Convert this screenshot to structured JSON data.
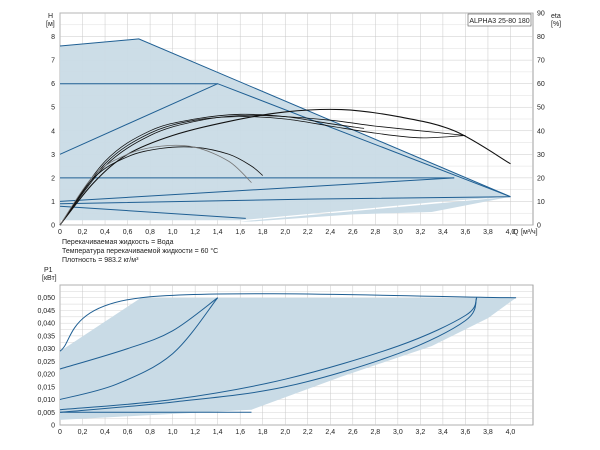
{
  "chart_data": [
    {
      "type": "line",
      "model_label": "ALPHA3 25-80 180",
      "ylabel": "H",
      "ylabel_unit": "[м]",
      "y2label": "eta",
      "y2label_unit": "[%]",
      "xlabel": "Q",
      "xlabel_unit": "[м³/ч]",
      "xlim": [
        0,
        4.2
      ],
      "ylim": [
        0,
        9
      ],
      "y2lim": [
        0,
        90
      ],
      "x_ticks": [
        "0",
        "0,2",
        "0,4",
        "0,6",
        "0,8",
        "1,0",
        "1,2",
        "1,4",
        "1,6",
        "1,8",
        "2,0",
        "2,2",
        "2,4",
        "2,6",
        "2,8",
        "3,0",
        "3,2",
        "3,4",
        "3,6",
        "3,8",
        "4,0"
      ],
      "y_ticks": [
        "0",
        "1",
        "2",
        "3",
        "4",
        "5",
        "6",
        "7",
        "8"
      ],
      "y2_ticks": [
        "0",
        "10",
        "20",
        "30",
        "40",
        "50",
        "60",
        "70",
        "80",
        "90"
      ],
      "info_lines": [
        "Перекачиваемая жидкость = Вода",
        "Температура перекачиваемой жидкости = 60 °C",
        "Плотность = 983.2 кг/м³"
      ],
      "operating_area": [
        [
          0,
          7.6
        ],
        [
          0.7,
          7.9
        ],
        [
          4.0,
          1.2
        ],
        [
          3.4,
          1.0
        ],
        [
          1.6,
          0.2
        ],
        [
          0,
          0.2
        ]
      ],
      "operating_area_extension": [
        [
          1.6,
          0.15
        ],
        [
          4.0,
          1.2
        ],
        [
          3.3,
          0.55
        ],
        [
          2.6,
          0.45
        ],
        [
          1.7,
          0.15
        ]
      ],
      "head_series": [
        {
          "points": [
            [
              0,
              7.6
            ],
            [
              0.7,
              7.9
            ],
            [
              4.0,
              1.2
            ]
          ]
        },
        {
          "points": [
            [
              0,
              6.0
            ],
            [
              1.4,
              6.0
            ],
            [
              4.0,
              1.2
            ]
          ]
        },
        {
          "points": [
            [
              0,
              3.0
            ],
            [
              1.4,
              6.0
            ]
          ]
        },
        {
          "points": [
            [
              0,
              2.0
            ],
            [
              3.5,
              2.0
            ]
          ]
        },
        {
          "points": [
            [
              0,
              1.0
            ],
            [
              3.5,
              2.0
            ]
          ]
        },
        {
          "points": [
            [
              0,
              0.8
            ],
            [
              1.65,
              0.28
            ]
          ]
        },
        {
          "points": [
            [
              0,
              0.9
            ],
            [
              2.2,
              1.1
            ],
            [
              4.0,
              1.2
            ]
          ]
        }
      ],
      "efficiency_series": [
        {
          "points": [
            [
              0,
              0
            ],
            [
              0.3,
              18
            ],
            [
              0.6,
              30
            ],
            [
              1.0,
              38
            ],
            [
              1.5,
              44
            ],
            [
              2.0,
              48
            ],
            [
              2.5,
              49
            ],
            [
              3.0,
              46
            ],
            [
              3.5,
              40
            ],
            [
              4.0,
              26
            ]
          ]
        },
        {
          "points": [
            [
              0,
              0
            ],
            [
              0.4,
              25
            ],
            [
              0.8,
              38
            ],
            [
              1.2,
              44
            ],
            [
              1.6,
              46.5
            ],
            [
              2.0,
              46
            ],
            [
              2.4,
              44.5
            ],
            [
              2.8,
              42
            ],
            [
              3.2,
              40
            ],
            [
              3.6,
              38
            ]
          ]
        },
        {
          "points": [
            [
              0,
              0
            ],
            [
              0.4,
              26
            ],
            [
              0.8,
              39
            ],
            [
              1.2,
              44.5
            ],
            [
              1.6,
              46
            ],
            [
              2.0,
              45
            ],
            [
              2.4,
              42
            ],
            [
              2.8,
              39
            ],
            [
              3.2,
              37
            ],
            [
              3.6,
              38
            ]
          ]
        },
        {
          "points": [
            [
              0,
              0
            ],
            [
              0.4,
              27
            ],
            [
              0.8,
              40
            ],
            [
              1.2,
              45
            ],
            [
              1.6,
              47
            ],
            [
              2.0,
              46
            ],
            [
              2.4,
              43
            ],
            [
              2.7,
              41
            ]
          ]
        },
        {
          "points": [
            [
              0,
              0
            ],
            [
              0.3,
              20
            ],
            [
              0.6,
              29
            ],
            [
              0.9,
              32.5
            ],
            [
              1.2,
              33
            ],
            [
              1.5,
              30
            ],
            [
              1.7,
              25
            ],
            [
              1.8,
              21
            ]
          ]
        },
        {
          "points": [
            [
              0,
              0
            ],
            [
              0.3,
              21
            ],
            [
              0.6,
              30
            ],
            [
              0.9,
              33.5
            ],
            [
              1.2,
              33
            ],
            [
              1.5,
              27
            ],
            [
              1.7,
              18
            ]
          ]
        }
      ]
    },
    {
      "type": "line",
      "ylabel": "P1",
      "ylabel_unit": "[кВт]",
      "xlim": [
        0,
        4.2
      ],
      "ylim": [
        0,
        0.055
      ],
      "x_ticks": [
        "0",
        "0,2",
        "0,4",
        "0,6",
        "0,8",
        "1,0",
        "1,2",
        "1,4",
        "1,6",
        "1,8",
        "2,0",
        "2,2",
        "2,4",
        "2,6",
        "2,8",
        "3,0",
        "3,2",
        "3,4",
        "3,6",
        "3,8",
        "4,0"
      ],
      "y_ticks": [
        "0",
        "0,005",
        "0,010",
        "0,015",
        "0,020",
        "0,025",
        "0,030",
        "0,035",
        "0,040",
        "0,045",
        "0,050"
      ],
      "operating_area": [
        [
          0,
          0.029
        ],
        [
          0.72,
          0.05
        ],
        [
          4.05,
          0.05
        ],
        [
          3.8,
          0.042
        ],
        [
          3.3,
          0.031
        ],
        [
          2.5,
          0.019
        ],
        [
          1.7,
          0.006
        ],
        [
          0,
          0.002
        ]
      ],
      "power_series": [
        {
          "points": [
            [
              0,
              0.029
            ],
            [
              0.72,
              0.05
            ],
            [
              4.05,
              0.05
            ]
          ]
        },
        {
          "points": [
            [
              0,
              0.022
            ],
            [
              0.6,
              0.03
            ],
            [
              1.0,
              0.037
            ],
            [
              1.4,
              0.05
            ]
          ]
        },
        {
          "points": [
            [
              0,
              0.01
            ],
            [
              0.5,
              0.016
            ],
            [
              1.0,
              0.028
            ],
            [
              1.4,
              0.05
            ]
          ]
        },
        {
          "points": [
            [
              0,
              0.006
            ],
            [
              1.0,
              0.01
            ],
            [
              2.0,
              0.018
            ],
            [
              3.0,
              0.031
            ],
            [
              3.6,
              0.043
            ],
            [
              3.7,
              0.05
            ]
          ]
        },
        {
          "points": [
            [
              0,
              0.005
            ],
            [
              1.0,
              0.009
            ],
            [
              2.0,
              0.015
            ],
            [
              3.0,
              0.028
            ],
            [
              3.6,
              0.041
            ],
            [
              3.7,
              0.05
            ]
          ]
        },
        {
          "points": [
            [
              0,
              0.005
            ],
            [
              0.6,
              0.005
            ],
            [
              1.7,
              0.005
            ]
          ]
        }
      ]
    }
  ]
}
